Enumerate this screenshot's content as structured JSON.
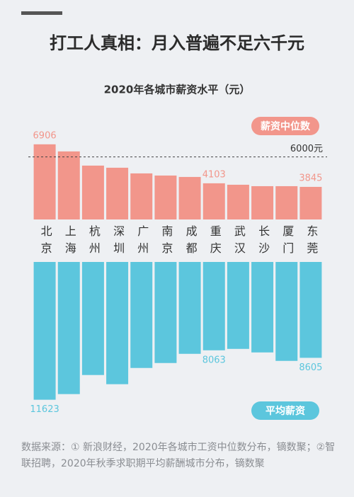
{
  "chart_data": {
    "type": "diverging-bar",
    "title": "打工人真相：月入普遍不足六千元",
    "subtitle": "2020年各城市薪资水平（元）",
    "categories": [
      "北京",
      "上海",
      "杭州",
      "深圳",
      "广州",
      "南京",
      "成都",
      "重庆",
      "武汉",
      "长沙",
      "厦门",
      "东莞"
    ],
    "series": [
      {
        "name": "薪资中位数",
        "color": "#f2968b",
        "values": [
          6906,
          6396,
          5375,
          5222,
          4814,
          4661,
          4559,
          4103,
          3998,
          3896,
          3896,
          3845
        ],
        "annotated": [
          0,
          7,
          11
        ]
      },
      {
        "name": "平均薪资",
        "color": "#5cc6dd",
        "axis": "y2",
        "values": [
          11623,
          11217,
          9843,
          10504,
          9335,
          8979,
          8317,
          8063,
          7961,
          8216,
          8826,
          8605
        ],
        "annotated": [
          0,
          7,
          11
        ]
      }
    ],
    "ylim": [
      1500,
      7000
    ],
    "y2lim": [
      1700,
      12000
    ],
    "reference": {
      "value": 6000,
      "label": "6000元"
    },
    "source": "数据来源：① 新浪财经，2020年各城市工资中位数分布，镝数聚；②智联招聘，2020年秋季求职期平均薪酬城市分布，镝数聚"
  }
}
